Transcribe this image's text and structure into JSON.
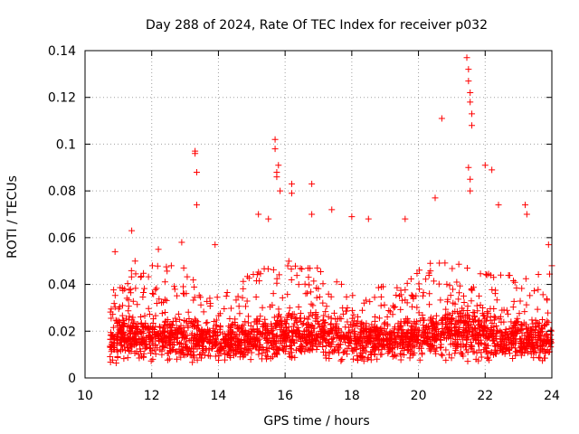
{
  "chart_data": {
    "type": "scatter",
    "title": "Day 288 of 2024, Rate Of TEC Index for receiver p032",
    "xlabel": "GPS time / hours",
    "ylabel": "ROTI / TECUs",
    "xlim": [
      10,
      24
    ],
    "ylim": [
      0,
      0.14
    ],
    "x_ticks": [
      10,
      12,
      14,
      16,
      18,
      20,
      22,
      24
    ],
    "x_tick_labels": [
      "10",
      "12",
      "14",
      "16",
      "18",
      "20",
      "22",
      "24"
    ],
    "y_ticks": [
      0,
      0.02,
      0.04,
      0.06,
      0.08,
      0.1,
      0.12,
      0.14
    ],
    "y_tick_labels": [
      "0",
      "0.02",
      "0.04",
      "0.06",
      "0.08",
      "0.1",
      "0.12",
      "0.14"
    ],
    "grid": true,
    "marker": "plus",
    "marker_color": "#ff0000",
    "series": [
      {
        "name": "ROTI",
        "x": [
          10.9,
          11.4,
          11.5,
          12.2,
          12.9,
          13.3,
          13.3,
          13.35,
          13.35,
          13.9,
          15.2,
          15.5,
          15.7,
          15.7,
          15.75,
          15.75,
          15.8,
          15.85,
          16.2,
          16.2,
          16.8,
          16.8,
          17.4,
          18.0,
          18.5,
          19.6,
          20.5,
          20.7,
          21.45,
          21.5,
          21.5,
          21.55,
          21.55,
          21.6,
          21.6,
          21.5,
          21.55,
          21.55,
          22.0,
          22.2,
          22.4,
          23.2,
          23.25,
          23.9,
          24.0
        ],
        "y": [
          0.054,
          0.063,
          0.05,
          0.055,
          0.058,
          0.096,
          0.097,
          0.088,
          0.074,
          0.057,
          0.07,
          0.068,
          0.102,
          0.098,
          0.088,
          0.086,
          0.091,
          0.08,
          0.083,
          0.079,
          0.083,
          0.07,
          0.072,
          0.069,
          0.068,
          0.068,
          0.077,
          0.111,
          0.137,
          0.132,
          0.127,
          0.122,
          0.118,
          0.113,
          0.108,
          0.09,
          0.085,
          0.08,
          0.091,
          0.089,
          0.074,
          0.074,
          0.07,
          0.057,
          0.048
        ],
        "bulk_density_by_hour": {
          "hours": [
            10.75,
            11,
            12,
            13,
            14,
            15,
            16,
            17,
            18,
            19,
            20,
            21,
            22,
            23,
            24
          ],
          "median_roti": [
            0.014,
            0.016,
            0.017,
            0.017,
            0.015,
            0.016,
            0.018,
            0.018,
            0.016,
            0.016,
            0.017,
            0.019,
            0.017,
            0.016,
            0.016
          ],
          "upper_envelope": [
            0.038,
            0.045,
            0.048,
            0.05,
            0.035,
            0.045,
            0.05,
            0.05,
            0.04,
            0.04,
            0.05,
            0.05,
            0.045,
            0.045,
            0.045
          ],
          "lower_envelope": [
            0.003,
            0.004,
            0.005,
            0.005,
            0.006,
            0.006,
            0.006,
            0.006,
            0.005,
            0.006,
            0.006,
            0.005,
            0.005,
            0.006,
            0.006
          ]
        }
      }
    ]
  }
}
